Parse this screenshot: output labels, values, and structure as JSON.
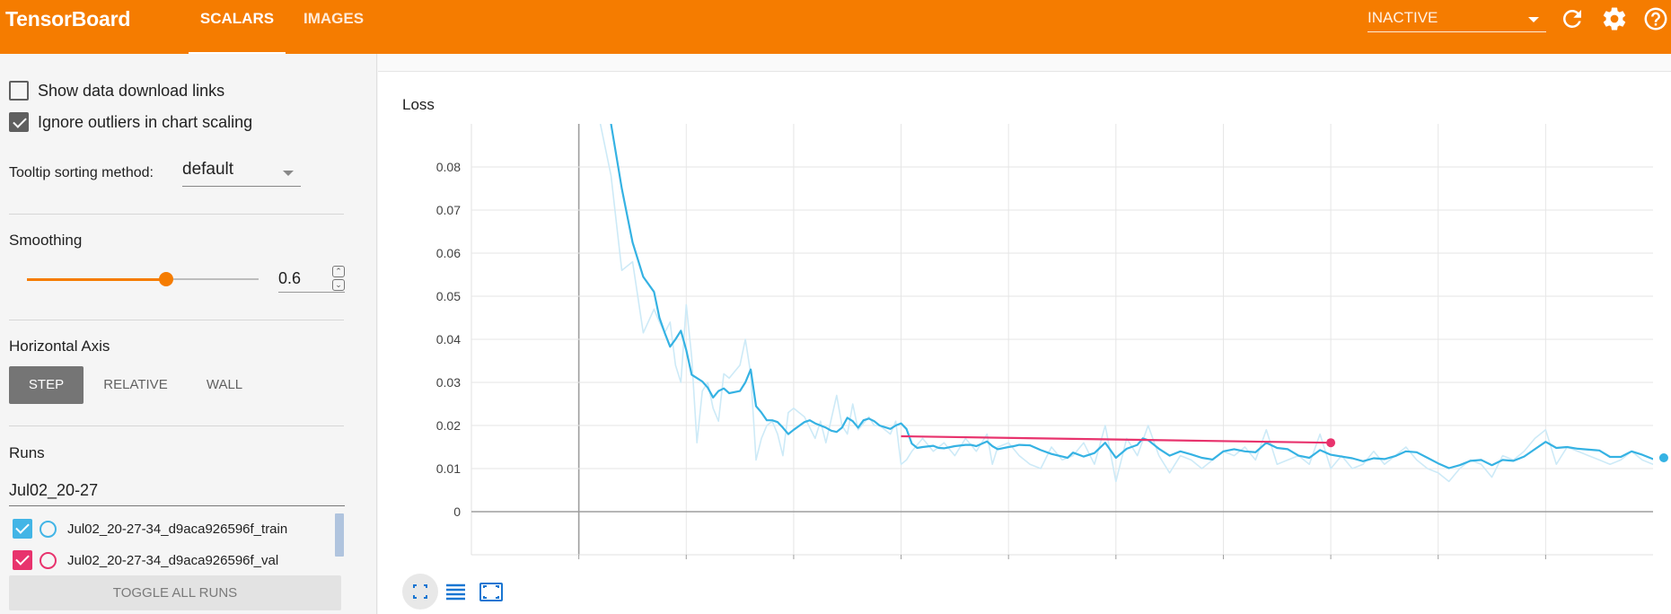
{
  "header": {
    "brand": "TensorBoard",
    "tabs": [
      {
        "label": "SCALARS",
        "active": true
      },
      {
        "label": "IMAGES",
        "active": false
      }
    ],
    "status": "INACTIVE",
    "icons": [
      "refresh-icon",
      "settings-gear-icon",
      "help-icon"
    ]
  },
  "sidebar": {
    "show_download_links": {
      "label": "Show data download links",
      "checked": false
    },
    "ignore_outliers": {
      "label": "Ignore outliers in chart scaling",
      "checked": true
    },
    "tooltip_sort": {
      "label": "Tooltip sorting method:",
      "value": "default"
    },
    "smoothing": {
      "title": "Smoothing",
      "value": "0.6",
      "fraction": 0.6
    },
    "horizontal_axis": {
      "title": "Horizontal Axis",
      "options": [
        "STEP",
        "RELATIVE",
        "WALL"
      ],
      "selected": "STEP"
    },
    "runs": {
      "title": "Runs",
      "filter": "Jul02_20-27",
      "items": [
        {
          "label": "Jul02_20-27-34_d9aca926596f_train",
          "color": "#42b5e6",
          "checked": true
        },
        {
          "label": "Jul02_20-27-34_d9aca926596f_val",
          "color": "#e8336d",
          "checked": true
        }
      ],
      "toggle_label": "TOGGLE ALL RUNS"
    }
  },
  "chart_data": {
    "type": "line",
    "title": "Loss",
    "ylim": [
      -0.01,
      0.09
    ],
    "xlim": [
      -10,
      100
    ],
    "y_ticks": [
      "0.08",
      "0.07",
      "0.06",
      "0.05",
      "0.04",
      "0.03",
      "0.02",
      "0.01",
      "0"
    ],
    "y_tick_values": [
      0.08,
      0.07,
      0.06,
      0.05,
      0.04,
      0.03,
      0.02,
      0.01,
      0
    ],
    "x_grid_steps": [
      0,
      10,
      20,
      30,
      40,
      50,
      60,
      70,
      80,
      90
    ],
    "grid": true,
    "series": [
      {
        "name": "Jul02_20-27-34_d9aca926596f_train",
        "color": "#35b2e3",
        "raw_color": "#cdeaf7",
        "smoothed": [
          [
            3,
            0.09
          ],
          [
            4,
            0.075
          ],
          [
            5,
            0.0625
          ],
          [
            6,
            0.0545
          ],
          [
            7,
            0.051
          ],
          [
            7.5,
            0.045
          ],
          [
            8,
            0.0415
          ],
          [
            8.5,
            0.0383
          ],
          [
            9,
            0.04
          ],
          [
            9.5,
            0.042
          ],
          [
            10,
            0.0375
          ],
          [
            10.5,
            0.0318
          ],
          [
            11,
            0.031
          ],
          [
            11.5,
            0.0302
          ],
          [
            12,
            0.0288
          ],
          [
            12.5,
            0.0265
          ],
          [
            13,
            0.028
          ],
          [
            13.5,
            0.0286
          ],
          [
            14,
            0.0275
          ],
          [
            15,
            0.028
          ],
          [
            15.5,
            0.03
          ],
          [
            16,
            0.033
          ],
          [
            16.5,
            0.0245
          ],
          [
            17,
            0.023
          ],
          [
            17.5,
            0.0212
          ],
          [
            18,
            0.0212
          ],
          [
            18.5,
            0.0208
          ],
          [
            19,
            0.0195
          ],
          [
            19.5,
            0.018
          ],
          [
            20,
            0.019
          ],
          [
            21,
            0.0208
          ],
          [
            21.5,
            0.0212
          ],
          [
            22,
            0.0205
          ],
          [
            23,
            0.0195
          ],
          [
            23.5,
            0.0188
          ],
          [
            24,
            0.0185
          ],
          [
            24.5,
            0.0195
          ],
          [
            25,
            0.0218
          ],
          [
            25.5,
            0.021
          ],
          [
            26,
            0.0195
          ],
          [
            26.5,
            0.0212
          ],
          [
            27,
            0.0216
          ],
          [
            27.5,
            0.021
          ],
          [
            28,
            0.02
          ],
          [
            29,
            0.0192
          ],
          [
            29.5,
            0.02
          ],
          [
            30,
            0.0205
          ],
          [
            30.5,
            0.0192
          ],
          [
            31,
            0.0158
          ],
          [
            31.5,
            0.0148
          ],
          [
            32,
            0.015
          ],
          [
            33,
            0.0153
          ],
          [
            33.5,
            0.0148
          ],
          [
            34,
            0.0147
          ],
          [
            35,
            0.0152
          ],
          [
            36,
            0.0155
          ],
          [
            36.5,
            0.0155
          ],
          [
            37,
            0.0152
          ],
          [
            38,
            0.0163
          ],
          [
            38.5,
            0.0152
          ],
          [
            39,
            0.0145
          ],
          [
            40,
            0.015
          ],
          [
            40.5,
            0.0152
          ],
          [
            41,
            0.0155
          ],
          [
            42,
            0.0154
          ],
          [
            43,
            0.0143
          ],
          [
            44,
            0.0134
          ],
          [
            45,
            0.0128
          ],
          [
            45.5,
            0.0125
          ],
          [
            46,
            0.0137
          ],
          [
            47,
            0.0128
          ],
          [
            48,
            0.0136
          ],
          [
            49,
            0.016
          ],
          [
            50,
            0.0125
          ],
          [
            51,
            0.0146
          ],
          [
            52,
            0.0155
          ],
          [
            52.5,
            0.017
          ],
          [
            53,
            0.0166
          ],
          [
            54,
            0.0146
          ],
          [
            55,
            0.013
          ],
          [
            56,
            0.014
          ],
          [
            57,
            0.0133
          ],
          [
            58,
            0.0125
          ],
          [
            59,
            0.0121
          ],
          [
            60,
            0.014
          ],
          [
            61,
            0.0145
          ],
          [
            62,
            0.014
          ],
          [
            63,
            0.0138
          ],
          [
            64,
            0.016
          ],
          [
            65,
            0.0148
          ],
          [
            66,
            0.0145
          ],
          [
            67,
            0.013
          ],
          [
            68,
            0.0125
          ],
          [
            69,
            0.0143
          ],
          [
            70,
            0.0132
          ],
          [
            71,
            0.0128
          ],
          [
            72,
            0.0124
          ],
          [
            73,
            0.0117
          ],
          [
            74,
            0.0124
          ],
          [
            75,
            0.0122
          ],
          [
            76,
            0.0129
          ],
          [
            77,
            0.014
          ],
          [
            78,
            0.0138
          ],
          [
            79,
            0.0125
          ],
          [
            80,
            0.0112
          ],
          [
            81,
            0.0101
          ],
          [
            82,
            0.0108
          ],
          [
            83,
            0.0118
          ],
          [
            84,
            0.012
          ],
          [
            85,
            0.0108
          ],
          [
            86,
            0.012
          ],
          [
            87,
            0.0118
          ],
          [
            88,
            0.0128
          ],
          [
            89,
            0.0145
          ],
          [
            90,
            0.0162
          ],
          [
            91,
            0.0148
          ],
          [
            92,
            0.015
          ],
          [
            93,
            0.0146
          ],
          [
            94,
            0.0144
          ],
          [
            95,
            0.0142
          ],
          [
            96,
            0.0127
          ],
          [
            97,
            0.0127
          ],
          [
            98,
            0.014
          ],
          [
            99,
            0.0132
          ],
          [
            100,
            0.0122
          ],
          [
            101,
            0.0125
          ]
        ],
        "raw": [
          [
            2,
            0.09
          ],
          [
            3,
            0.078
          ],
          [
            4,
            0.056
          ],
          [
            5,
            0.058
          ],
          [
            6,
            0.0415
          ],
          [
            7,
            0.047
          ],
          [
            7.5,
            0.044
          ],
          [
            8,
            0.0415
          ],
          [
            8.5,
            0.044
          ],
          [
            9,
            0.034
          ],
          [
            9.5,
            0.03
          ],
          [
            10,
            0.048
          ],
          [
            10.5,
            0.036
          ],
          [
            11,
            0.016
          ],
          [
            11.5,
            0.028
          ],
          [
            12,
            0.03
          ],
          [
            12.5,
            0.024
          ],
          [
            13,
            0.021
          ],
          [
            13.5,
            0.032
          ],
          [
            14,
            0.031
          ],
          [
            15,
            0.034
          ],
          [
            15.5,
            0.04
          ],
          [
            16,
            0.032
          ],
          [
            16.5,
            0.012
          ],
          [
            17,
            0.017
          ],
          [
            17.5,
            0.02
          ],
          [
            18,
            0.021
          ],
          [
            18.5,
            0.018
          ],
          [
            19,
            0.013
          ],
          [
            19.5,
            0.023
          ],
          [
            20,
            0.024
          ],
          [
            21,
            0.022
          ],
          [
            22,
            0.017
          ],
          [
            22.5,
            0.021
          ],
          [
            23,
            0.016
          ],
          [
            24,
            0.027
          ],
          [
            24.5,
            0.02
          ],
          [
            25,
            0.018
          ],
          [
            25.5,
            0.025
          ],
          [
            26,
            0.019
          ],
          [
            27,
            0.022
          ],
          [
            27.5,
            0.02
          ],
          [
            28,
            0.02
          ],
          [
            29,
            0.018
          ],
          [
            29.5,
            0.021
          ],
          [
            30,
            0.011
          ],
          [
            30.5,
            0.012
          ],
          [
            31,
            0.014
          ],
          [
            32,
            0.017
          ],
          [
            33,
            0.014
          ],
          [
            34,
            0.016
          ],
          [
            35,
            0.013
          ],
          [
            36,
            0.017
          ],
          [
            37,
            0.014
          ],
          [
            38,
            0.018
          ],
          [
            38.5,
            0.011
          ],
          [
            39,
            0.015
          ],
          [
            40,
            0.016
          ],
          [
            41,
            0.013
          ],
          [
            42,
            0.011
          ],
          [
            43,
            0.01
          ],
          [
            44,
            0.015
          ],
          [
            45,
            0.012
          ],
          [
            46,
            0.013
          ],
          [
            47,
            0.016
          ],
          [
            48,
            0.011
          ],
          [
            49,
            0.02
          ],
          [
            50,
            0.007
          ],
          [
            51,
            0.017
          ],
          [
            52,
            0.013
          ],
          [
            53,
            0.02
          ],
          [
            54,
            0.013
          ],
          [
            55,
            0.009
          ],
          [
            56,
            0.013
          ],
          [
            57,
            0.012
          ],
          [
            58,
            0.01
          ],
          [
            59,
            0.012
          ],
          [
            60,
            0.014
          ],
          [
            61,
            0.013
          ],
          [
            62,
            0.015
          ],
          [
            63,
            0.012
          ],
          [
            64,
            0.019
          ],
          [
            65,
            0.011
          ],
          [
            66,
            0.012
          ],
          [
            67,
            0.013
          ],
          [
            68,
            0.011
          ],
          [
            69,
            0.018
          ],
          [
            70,
            0.01
          ],
          [
            71,
            0.013
          ],
          [
            72,
            0.01
          ],
          [
            73,
            0.011
          ],
          [
            74,
            0.014
          ],
          [
            75,
            0.011
          ],
          [
            76,
            0.013
          ],
          [
            77,
            0.015
          ],
          [
            78,
            0.012
          ],
          [
            79,
            0.01
          ],
          [
            80,
            0.009
          ],
          [
            81,
            0.007
          ],
          [
            82,
            0.01
          ],
          [
            83,
            0.012
          ],
          [
            84,
            0.011
          ],
          [
            85,
            0.008
          ],
          [
            86,
            0.013
          ],
          [
            87,
            0.012
          ],
          [
            88,
            0.014
          ],
          [
            89,
            0.017
          ],
          [
            90,
            0.019
          ],
          [
            91,
            0.011
          ],
          [
            92,
            0.015
          ],
          [
            93,
            0.014
          ],
          [
            94,
            0.013
          ],
          [
            95,
            0.012
          ],
          [
            96,
            0.011
          ],
          [
            97,
            0.012
          ],
          [
            98,
            0.014
          ],
          [
            99,
            0.012
          ],
          [
            100,
            0.011
          ],
          [
            101,
            0.012
          ]
        ]
      },
      {
        "name": "Jul02_20-27-34_d9aca926596f_val",
        "color": "#e8336d",
        "smoothed": [
          [
            30,
            0.0175
          ],
          [
            70,
            0.016
          ]
        ]
      }
    ]
  },
  "toolbar": {
    "icons": [
      "fit-domain-icon",
      "toggle-log-scale-icon",
      "expand-chart-icon"
    ]
  }
}
